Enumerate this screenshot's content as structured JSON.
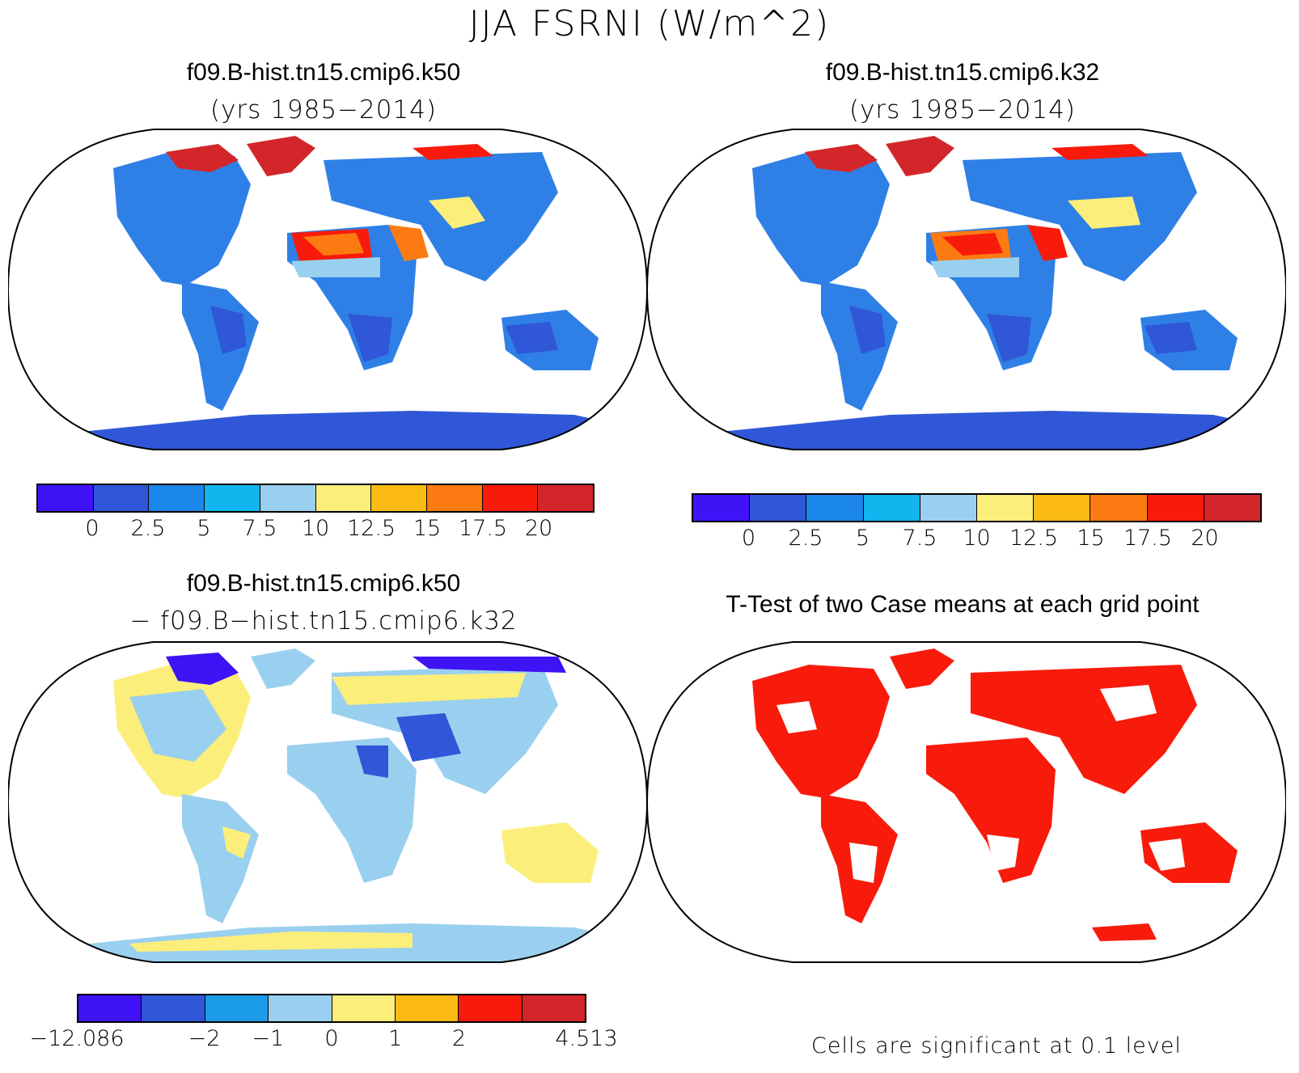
{
  "title": "JJA FSRNI (W/m^2)",
  "panels": [
    {
      "title": "f09.B-hist.tn15.cmip6.k50",
      "subtitle": "(yrs 1985−2014)"
    },
    {
      "title": "f09.B-hist.tn15.cmip6.k32",
      "subtitle": "(yrs 1985−2014)"
    },
    {
      "title": "f09.B-hist.tn15.cmip6.k50",
      "subtitle": "− f09.B−hist.tn15.cmip6.k32"
    },
    {
      "title": "T-Test of two Case means at each grid point",
      "subtitle": ""
    }
  ],
  "colorbar_top": {
    "colors": [
      "#3e13f5",
      "#2f57d8",
      "#1c87ea",
      "#12b4ee",
      "#9ad0ef",
      "#fcee7a",
      "#fcbb14",
      "#fb7b12",
      "#f81b0c",
      "#d3262a"
    ],
    "labels": [
      "0",
      "2.5",
      "5",
      "7.5",
      "10",
      "12.5",
      "15",
      "17.5",
      "20"
    ]
  },
  "colorbar_diff": {
    "colors": [
      "#3e13f5",
      "#2f57d8",
      "#1c9ce8",
      "#9ad0ef",
      "#fcee7a",
      "#fcbb14",
      "#f81b0c",
      "#d3262a"
    ],
    "labels": [
      "−12.086",
      "−2",
      "−1",
      "0",
      "1",
      "2",
      "4.513"
    ]
  },
  "footnote": "Cells are significant at 0.1 level"
}
